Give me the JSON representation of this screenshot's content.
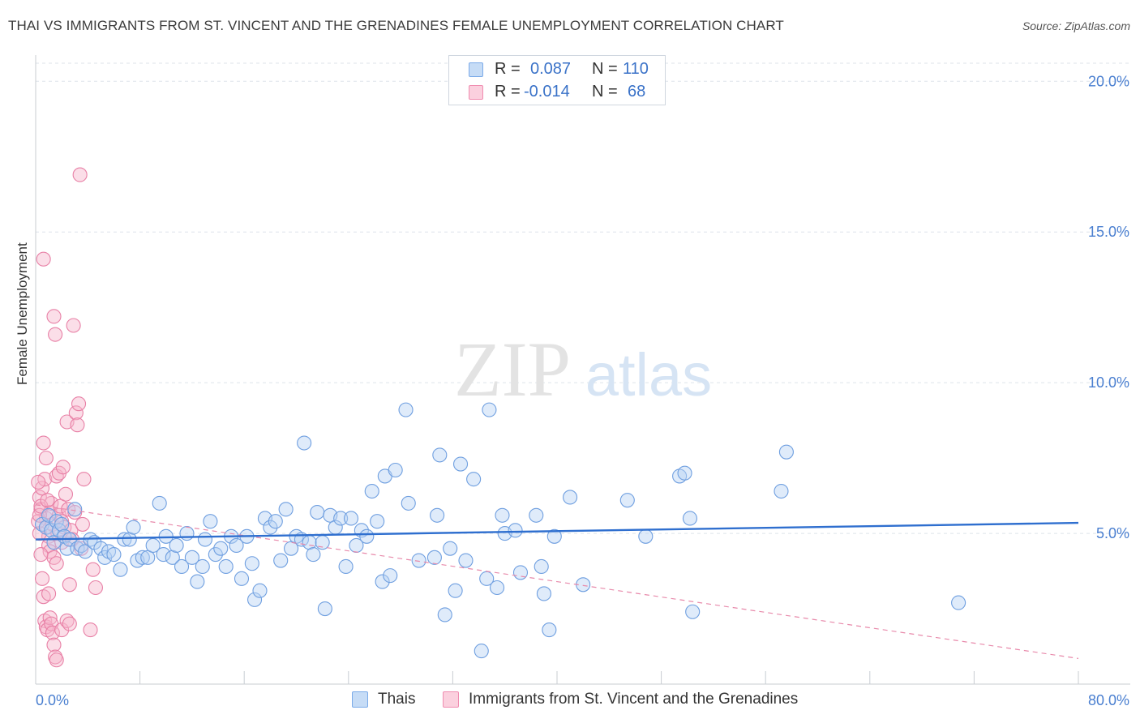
{
  "title": "THAI VS IMMIGRANTS FROM ST. VINCENT AND THE GRENADINES FEMALE UNEMPLOYMENT CORRELATION CHART",
  "source": "Source: ZipAtlas.com",
  "watermark": {
    "zip": "ZIP",
    "atlas": "atlas"
  },
  "legend": {
    "r_label": "R =",
    "n_label": "N =",
    "thais": {
      "r": "0.087",
      "n": "110",
      "color": "#7aaae8"
    },
    "svg": {
      "r": "-0.014",
      "n": "68",
      "color": "#f08cb0"
    }
  },
  "colors": {
    "blue": "#3a72c8",
    "pink": "#e36a95",
    "grid": "#dde3ea",
    "axis_text": "#4a7fd0"
  },
  "chart_data": {
    "type": "scatter",
    "title": "THAI VS IMMIGRANTS FROM ST. VINCENT AND THE GRENADINES FEMALE UNEMPLOYMENT CORRELATION CHART",
    "xlabel": "",
    "ylabel": "Female Unemployment",
    "xlim": [
      0,
      80
    ],
    "ylim": [
      0,
      20.6
    ],
    "x_tick_labels": [
      "0.0%",
      "80.0%"
    ],
    "y_ticks": [
      5,
      10,
      15,
      20
    ],
    "y_tick_labels": [
      "5.0%",
      "10.0%",
      "15.0%",
      "20.0%"
    ],
    "legend_position": "bottom-center",
    "series": [
      {
        "name": "Thais",
        "color": "#7aaae8",
        "trend": {
          "x": [
            0,
            80
          ],
          "y": [
            4.8,
            5.35
          ]
        },
        "points": [
          [
            0.5,
            5.3
          ],
          [
            0.8,
            5.2
          ],
          [
            1.0,
            5.6
          ],
          [
            1.2,
            5.1
          ],
          [
            1.4,
            4.7
          ],
          [
            1.6,
            5.4
          ],
          [
            1.8,
            5.1
          ],
          [
            2.0,
            5.3
          ],
          [
            2.2,
            4.9
          ],
          [
            2.4,
            4.5
          ],
          [
            2.6,
            4.8
          ],
          [
            3.0,
            5.8
          ],
          [
            3.2,
            4.5
          ],
          [
            3.5,
            4.6
          ],
          [
            3.8,
            4.4
          ],
          [
            4.2,
            4.8
          ],
          [
            4.5,
            4.7
          ],
          [
            5.0,
            4.5
          ],
          [
            5.3,
            4.2
          ],
          [
            5.6,
            4.4
          ],
          [
            6.0,
            4.3
          ],
          [
            6.5,
            3.8
          ],
          [
            6.8,
            4.8
          ],
          [
            7.2,
            4.8
          ],
          [
            7.5,
            5.2
          ],
          [
            7.8,
            4.1
          ],
          [
            8.2,
            4.2
          ],
          [
            8.6,
            4.2
          ],
          [
            9.0,
            4.6
          ],
          [
            9.5,
            6.0
          ],
          [
            9.8,
            4.3
          ],
          [
            10.0,
            4.9
          ],
          [
            10.5,
            4.2
          ],
          [
            10.8,
            4.6
          ],
          [
            11.2,
            3.9
          ],
          [
            11.6,
            5.0
          ],
          [
            12.0,
            4.2
          ],
          [
            12.4,
            3.4
          ],
          [
            12.8,
            3.9
          ],
          [
            13.0,
            4.8
          ],
          [
            13.4,
            5.4
          ],
          [
            13.8,
            4.3
          ],
          [
            14.2,
            4.5
          ],
          [
            14.6,
            3.9
          ],
          [
            15.0,
            4.9
          ],
          [
            15.4,
            4.6
          ],
          [
            15.8,
            3.5
          ],
          [
            16.2,
            4.9
          ],
          [
            16.6,
            4.0
          ],
          [
            16.8,
            2.8
          ],
          [
            17.2,
            3.1
          ],
          [
            17.6,
            5.5
          ],
          [
            18.0,
            5.2
          ],
          [
            18.4,
            5.4
          ],
          [
            18.8,
            4.1
          ],
          [
            19.2,
            5.8
          ],
          [
            19.6,
            4.5
          ],
          [
            20.0,
            4.9
          ],
          [
            20.4,
            4.8
          ],
          [
            20.6,
            8.0
          ],
          [
            21.0,
            4.7
          ],
          [
            21.3,
            4.3
          ],
          [
            21.6,
            5.7
          ],
          [
            22.0,
            4.7
          ],
          [
            22.2,
            2.5
          ],
          [
            22.6,
            5.6
          ],
          [
            23.0,
            5.2
          ],
          [
            23.4,
            5.5
          ],
          [
            23.8,
            3.9
          ],
          [
            24.2,
            5.5
          ],
          [
            24.6,
            4.6
          ],
          [
            25.0,
            5.1
          ],
          [
            25.4,
            4.9
          ],
          [
            25.8,
            6.4
          ],
          [
            26.2,
            5.4
          ],
          [
            26.6,
            3.4
          ],
          [
            26.8,
            6.9
          ],
          [
            27.2,
            3.6
          ],
          [
            27.6,
            7.1
          ],
          [
            28.4,
            9.1
          ],
          [
            28.6,
            6.0
          ],
          [
            29.4,
            4.1
          ],
          [
            30.6,
            4.2
          ],
          [
            30.8,
            5.6
          ],
          [
            31.0,
            7.6
          ],
          [
            31.4,
            2.3
          ],
          [
            31.8,
            4.5
          ],
          [
            32.2,
            3.1
          ],
          [
            32.6,
            7.3
          ],
          [
            33.0,
            4.1
          ],
          [
            33.6,
            6.8
          ],
          [
            34.2,
            1.1
          ],
          [
            34.6,
            3.5
          ],
          [
            34.8,
            9.1
          ],
          [
            35.4,
            3.2
          ],
          [
            35.8,
            5.6
          ],
          [
            36.0,
            5.0
          ],
          [
            36.8,
            5.1
          ],
          [
            37.2,
            3.7
          ],
          [
            38.4,
            5.6
          ],
          [
            38.8,
            3.9
          ],
          [
            39.0,
            3.0
          ],
          [
            39.4,
            1.8
          ],
          [
            39.8,
            4.9
          ],
          [
            41.0,
            6.2
          ],
          [
            42.0,
            3.3
          ],
          [
            45.4,
            6.1
          ],
          [
            46.8,
            4.9
          ],
          [
            49.4,
            6.9
          ],
          [
            49.8,
            7.0
          ],
          [
            50.2,
            5.5
          ],
          [
            50.4,
            2.4
          ],
          [
            57.2,
            6.4
          ],
          [
            57.6,
            7.7
          ],
          [
            70.8,
            2.7
          ]
        ]
      },
      {
        "name": "Immigrants from St. Vincent and the Grenadines",
        "color": "#f08cb0",
        "trend": {
          "x": [
            0,
            80
          ],
          "y": [
            5.95,
            0.85
          ]
        },
        "points": [
          [
            0.3,
            6.2
          ],
          [
            0.4,
            5.8
          ],
          [
            0.5,
            6.5
          ],
          [
            0.6,
            8.0
          ],
          [
            0.6,
            14.1
          ],
          [
            0.7,
            6.8
          ],
          [
            0.8,
            7.5
          ],
          [
            0.8,
            5.5
          ],
          [
            0.9,
            5.2
          ],
          [
            1.0,
            4.9
          ],
          [
            1.0,
            4.6
          ],
          [
            1.1,
            4.4
          ],
          [
            1.1,
            5.7
          ],
          [
            1.2,
            6.0
          ],
          [
            1.3,
            5.3
          ],
          [
            1.4,
            12.2
          ],
          [
            1.4,
            4.2
          ],
          [
            1.5,
            11.6
          ],
          [
            1.6,
            6.9
          ],
          [
            1.6,
            4.0
          ],
          [
            1.7,
            5.0
          ],
          [
            1.8,
            5.6
          ],
          [
            1.8,
            7.0
          ],
          [
            1.9,
            5.9
          ],
          [
            2.0,
            5.4
          ],
          [
            2.0,
            4.7
          ],
          [
            2.1,
            7.2
          ],
          [
            2.2,
            5.2
          ],
          [
            2.3,
            6.3
          ],
          [
            2.4,
            8.7
          ],
          [
            2.5,
            5.8
          ],
          [
            2.6,
            3.3
          ],
          [
            2.7,
            5.1
          ],
          [
            2.8,
            4.8
          ],
          [
            2.9,
            11.9
          ],
          [
            3.0,
            5.7
          ],
          [
            3.1,
            9.0
          ],
          [
            3.2,
            8.6
          ],
          [
            3.3,
            9.3
          ],
          [
            3.4,
            16.9
          ],
          [
            3.5,
            4.5
          ],
          [
            3.6,
            5.3
          ],
          [
            3.7,
            6.8
          ],
          [
            0.3,
            5.0
          ],
          [
            0.4,
            4.3
          ],
          [
            0.5,
            3.5
          ],
          [
            0.6,
            2.9
          ],
          [
            0.7,
            2.1
          ],
          [
            0.8,
            1.9
          ],
          [
            0.9,
            1.8
          ],
          [
            1.0,
            3.0
          ],
          [
            1.1,
            2.2
          ],
          [
            1.2,
            2.0
          ],
          [
            1.3,
            1.7
          ],
          [
            1.4,
            1.3
          ],
          [
            1.5,
            0.9
          ],
          [
            1.6,
            0.8
          ],
          [
            2.0,
            1.8
          ],
          [
            2.4,
            2.1
          ],
          [
            2.6,
            2.0
          ],
          [
            0.2,
            5.4
          ],
          [
            0.3,
            5.6
          ],
          [
            0.4,
            5.9
          ],
          [
            4.2,
            1.8
          ],
          [
            4.4,
            3.8
          ],
          [
            4.6,
            3.2
          ],
          [
            0.2,
            6.7
          ],
          [
            0.9,
            6.1
          ]
        ]
      }
    ]
  }
}
